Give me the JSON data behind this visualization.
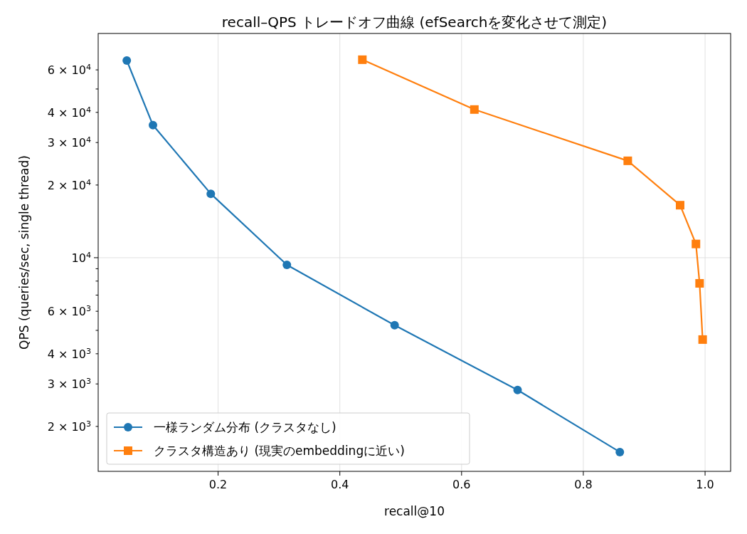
{
  "chart_data": {
    "type": "line",
    "title": "recall–QPS トレードオフ曲線 (efSearchを変化させて測定)",
    "xlabel": "recall@10",
    "ylabel": "QPS (queries/sec, single thread)",
    "log": "y",
    "grid": true,
    "legend": "bottom left",
    "xlim": [
      0.003,
      1.042
    ],
    "xticks": [
      0.2,
      0.4,
      0.6,
      0.8,
      {
        "value": 1.0,
        "label": "1.0"
      }
    ],
    "ylim": [
      1303,
      84900
    ],
    "yticks": [
      {
        "value": 2000,
        "label": "2 × 10$^{3}$"
      },
      {
        "value": 3000,
        "label": "3 × 10$^{3}$"
      },
      {
        "value": 4000,
        "label": "4 × 10$^{3}$"
      },
      {
        "value": 5000,
        "label": null
      },
      {
        "value": 6000,
        "label": "6 × 10$^{3}$"
      },
      {
        "value": 7000,
        "label": null
      },
      {
        "value": 8000,
        "label": null
      },
      {
        "value": 9000,
        "label": null
      },
      {
        "value": 10000,
        "label": "10$^{4}$"
      },
      {
        "value": 20000,
        "label": "2 × 10$^{4}$"
      },
      {
        "value": 30000,
        "label": "3 × 10$^{4}$"
      },
      {
        "value": 40000,
        "label": "4 × 10$^{4}$"
      },
      {
        "value": 50000,
        "label": null
      },
      {
        "value": 60000,
        "label": "6 × 10$^{4}$"
      }
    ],
    "series": [
      {
        "name": "一様ランダム分布 (クラスタなし)",
        "color": "#1f77b4",
        "marker": "circle",
        "x": [
          0.05,
          0.093,
          0.188,
          0.313,
          0.49,
          0.692,
          0.86
        ],
        "values": [
          65600,
          35400,
          18400,
          9340,
          5250,
          2830,
          1566
        ]
      },
      {
        "name": "クラスタ構造あり (現実のembeddingに近い)",
        "color": "#ff7f0e",
        "marker": "square",
        "x": [
          0.437,
          0.621,
          0.873,
          0.959,
          0.985,
          0.991,
          0.996
        ],
        "values": [
          66100,
          41100,
          25200,
          16500,
          11400,
          7830,
          4580
        ]
      }
    ]
  }
}
